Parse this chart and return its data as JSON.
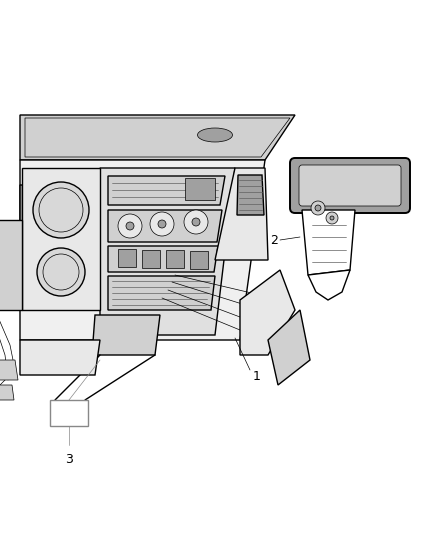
{
  "bg_color": "#ffffff",
  "line_color": "#000000",
  "gray_light": "#d0d0d0",
  "gray_mid": "#a0a0a0",
  "gray_dark": "#606060",
  "fig_width": 4.38,
  "fig_height": 5.33,
  "dpi": 100,
  "lw_main": 1.0,
  "lw_thin": 0.5,
  "lw_thick": 1.4
}
